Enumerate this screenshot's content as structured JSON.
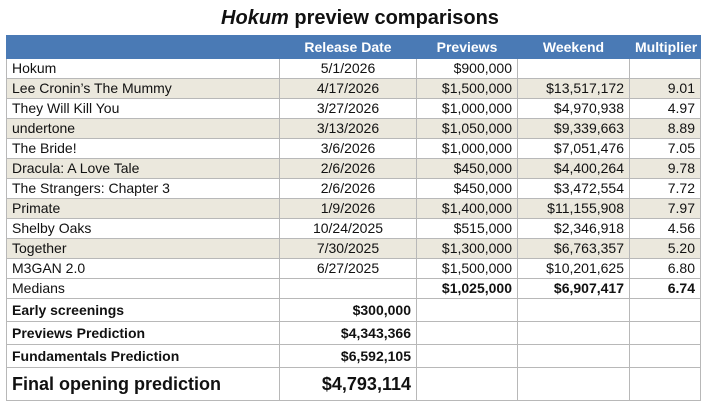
{
  "title": {
    "italic": "Hokum",
    "rest": "preview comparisons"
  },
  "headers": [
    "",
    "Release Date",
    "Previews",
    "Weekend",
    "Multiplier"
  ],
  "rows": [
    {
      "name": "Hokum",
      "date": "5/1/2026",
      "previews": "$900,000",
      "weekend": "",
      "multiplier": ""
    },
    {
      "name": "Lee Cronin’s The Mummy",
      "date": "4/17/2026",
      "previews": "$1,500,000",
      "weekend": "$13,517,172",
      "multiplier": "9.01"
    },
    {
      "name": "They Will Kill You",
      "date": "3/27/2026",
      "previews": "$1,000,000",
      "weekend": "$4,970,938",
      "multiplier": "4.97"
    },
    {
      "name": "undertone",
      "date": "3/13/2026",
      "previews": "$1,050,000",
      "weekend": "$9,339,663",
      "multiplier": "8.89"
    },
    {
      "name": "The Bride!",
      "date": "3/6/2026",
      "previews": "$1,000,000",
      "weekend": "$7,051,476",
      "multiplier": "7.05"
    },
    {
      "name": "Dracula: A Love Tale",
      "date": "2/6/2026",
      "previews": "$450,000",
      "weekend": "$4,400,264",
      "multiplier": "9.78"
    },
    {
      "name": "The Strangers: Chapter 3",
      "date": "2/6/2026",
      "previews": "$450,000",
      "weekend": "$3,472,554",
      "multiplier": "7.72"
    },
    {
      "name": "Primate",
      "date": "1/9/2026",
      "previews": "$1,400,000",
      "weekend": "$11,155,908",
      "multiplier": "7.97"
    },
    {
      "name": "Shelby Oaks",
      "date": "10/24/2025",
      "previews": "$515,000",
      "weekend": "$2,346,918",
      "multiplier": "4.56"
    },
    {
      "name": "Together",
      "date": "7/30/2025",
      "previews": "$1,300,000",
      "weekend": "$6,763,357",
      "multiplier": "5.20"
    },
    {
      "name": "M3GAN 2.0",
      "date": "6/27/2025",
      "previews": "$1,500,000",
      "weekend": "$10,201,625",
      "multiplier": "6.80"
    }
  ],
  "medians": {
    "label": "Medians",
    "previews": "$1,025,000",
    "weekend": "$6,907,417",
    "multiplier": "6.74"
  },
  "summary": [
    {
      "label": "Early screenings",
      "value": "$300,000"
    },
    {
      "label": "Previews Prediction",
      "value": "$4,343,366"
    },
    {
      "label": "Fundamentals Prediction",
      "value": "$6,592,105"
    }
  ],
  "final": {
    "label": "Final opening prediction",
    "value": "$4,793,114"
  },
  "colors": {
    "header_bg": "#4a7ab5",
    "header_text": "#ffffff",
    "row_shade": "#ebe8dd"
  }
}
